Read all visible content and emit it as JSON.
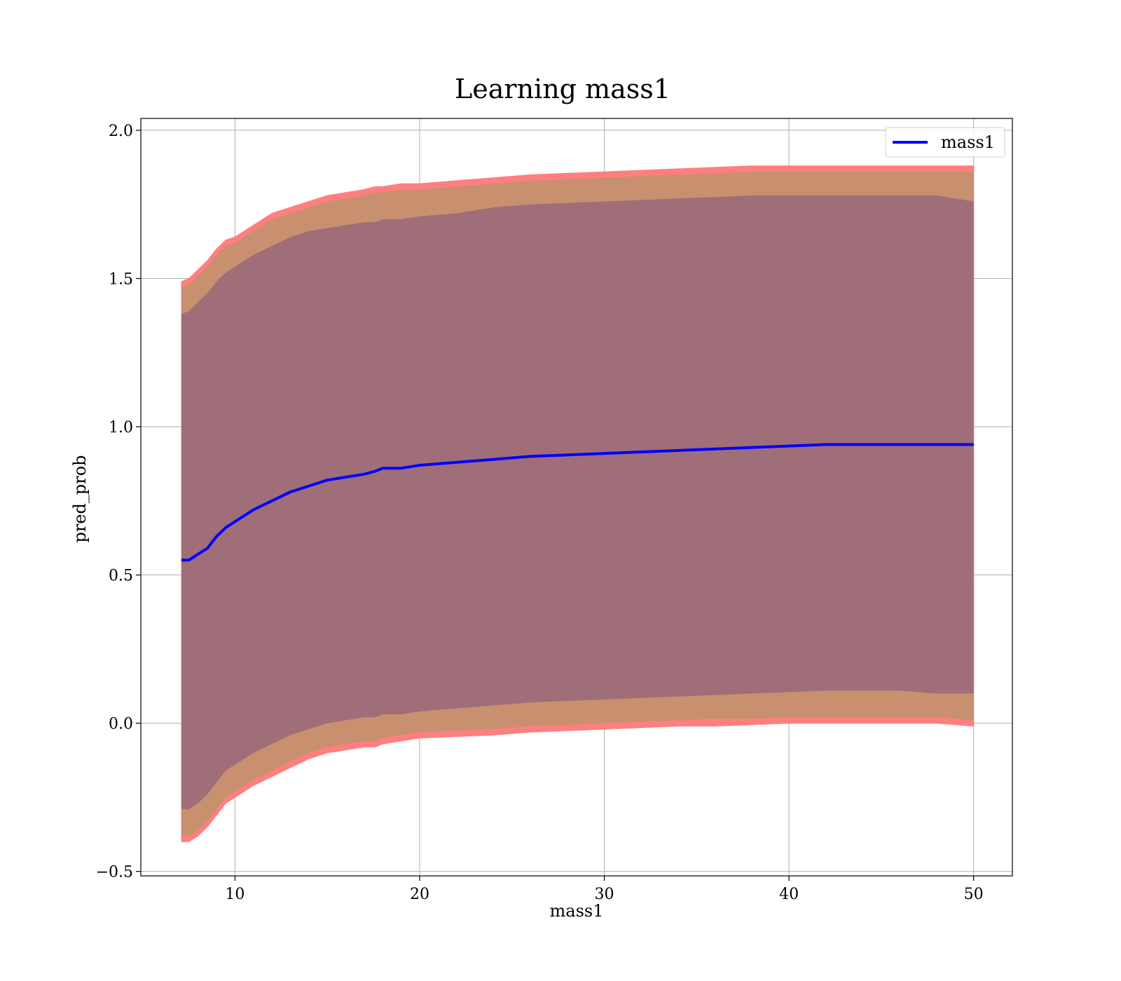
{
  "chart_data": {
    "type": "line",
    "title": "Learning mass1",
    "xlabel": "mass1",
    "ylabel": "pred_prob",
    "xlim": [
      4.9,
      52.1
    ],
    "ylim": [
      -0.515,
      2.04
    ],
    "xticks": [
      10,
      20,
      30,
      40,
      50
    ],
    "xtick_labels": [
      "10",
      "20",
      "30",
      "40",
      "50"
    ],
    "yticks": [
      -0.5,
      0.0,
      0.5,
      1.0,
      1.5,
      2.0
    ],
    "ytick_labels": [
      "−0.5",
      "0.0",
      "0.5",
      "1.0",
      "1.5",
      "2.0"
    ],
    "grid": true,
    "legend": {
      "position": "top-right",
      "entries": [
        "mass1"
      ]
    },
    "colors": {
      "line": "#0000ff",
      "band_outer": "#ff7f7f",
      "band_middle": "#c8906f",
      "band_inner": "#a06e78",
      "grid": "#b0b0b0"
    },
    "series": [
      {
        "name": "mass1",
        "x": [
          7.1,
          7.5,
          8.0,
          8.5,
          9.0,
          9.5,
          10.0,
          11.0,
          12.0,
          13.0,
          14.0,
          15.0,
          16.0,
          17.0,
          17.6,
          18.0,
          19.0,
          20.0,
          22.0,
          24.0,
          26.0,
          28.0,
          30.0,
          32.0,
          34.0,
          36.0,
          38.0,
          40.0,
          42.0,
          44.0,
          46.0,
          48.0,
          50.0
        ],
        "y": [
          0.55,
          0.55,
          0.57,
          0.59,
          0.63,
          0.66,
          0.68,
          0.72,
          0.75,
          0.78,
          0.8,
          0.82,
          0.83,
          0.84,
          0.85,
          0.86,
          0.86,
          0.87,
          0.88,
          0.89,
          0.9,
          0.905,
          0.91,
          0.915,
          0.92,
          0.925,
          0.93,
          0.935,
          0.94,
          0.94,
          0.94,
          0.94,
          0.94
        ],
        "inner_lower": [
          -0.29,
          -0.29,
          -0.27,
          -0.24,
          -0.2,
          -0.16,
          -0.14,
          -0.1,
          -0.07,
          -0.04,
          -0.02,
          0.0,
          0.01,
          0.02,
          0.02,
          0.03,
          0.03,
          0.04,
          0.05,
          0.06,
          0.07,
          0.075,
          0.08,
          0.085,
          0.09,
          0.095,
          0.1,
          0.105,
          0.11,
          0.11,
          0.11,
          0.1,
          0.1
        ],
        "inner_upper": [
          1.38,
          1.39,
          1.42,
          1.45,
          1.49,
          1.52,
          1.54,
          1.58,
          1.61,
          1.64,
          1.66,
          1.67,
          1.68,
          1.69,
          1.69,
          1.7,
          1.7,
          1.71,
          1.72,
          1.74,
          1.75,
          1.755,
          1.76,
          1.765,
          1.77,
          1.775,
          1.78,
          1.78,
          1.78,
          1.78,
          1.78,
          1.78,
          1.76
        ],
        "middle_lower": [
          -0.38,
          -0.38,
          -0.36,
          -0.33,
          -0.29,
          -0.25,
          -0.23,
          -0.19,
          -0.16,
          -0.13,
          -0.1,
          -0.08,
          -0.07,
          -0.06,
          -0.06,
          -0.05,
          -0.04,
          -0.03,
          -0.025,
          -0.02,
          -0.01,
          -0.005,
          0.0,
          0.005,
          0.01,
          0.015,
          0.015,
          0.02,
          0.02,
          0.02,
          0.02,
          0.02,
          0.01
        ],
        "middle_upper": [
          1.47,
          1.48,
          1.51,
          1.54,
          1.58,
          1.61,
          1.62,
          1.66,
          1.7,
          1.72,
          1.74,
          1.76,
          1.77,
          1.78,
          1.79,
          1.79,
          1.8,
          1.8,
          1.81,
          1.82,
          1.83,
          1.835,
          1.84,
          1.845,
          1.85,
          1.855,
          1.86,
          1.86,
          1.86,
          1.86,
          1.86,
          1.86,
          1.86
        ],
        "outer_lower": [
          -0.4,
          -0.4,
          -0.38,
          -0.35,
          -0.31,
          -0.27,
          -0.25,
          -0.21,
          -0.18,
          -0.15,
          -0.12,
          -0.1,
          -0.09,
          -0.08,
          -0.08,
          -0.07,
          -0.06,
          -0.05,
          -0.045,
          -0.04,
          -0.03,
          -0.025,
          -0.02,
          -0.015,
          -0.01,
          -0.01,
          -0.005,
          0.0,
          0.0,
          0.0,
          0.0,
          0.0,
          -0.01
        ],
        "outer_upper": [
          1.49,
          1.5,
          1.53,
          1.56,
          1.6,
          1.63,
          1.64,
          1.68,
          1.72,
          1.74,
          1.76,
          1.78,
          1.79,
          1.8,
          1.81,
          1.81,
          1.82,
          1.82,
          1.83,
          1.84,
          1.85,
          1.855,
          1.86,
          1.865,
          1.87,
          1.875,
          1.88,
          1.88,
          1.88,
          1.88,
          1.88,
          1.88,
          1.88
        ]
      }
    ]
  }
}
